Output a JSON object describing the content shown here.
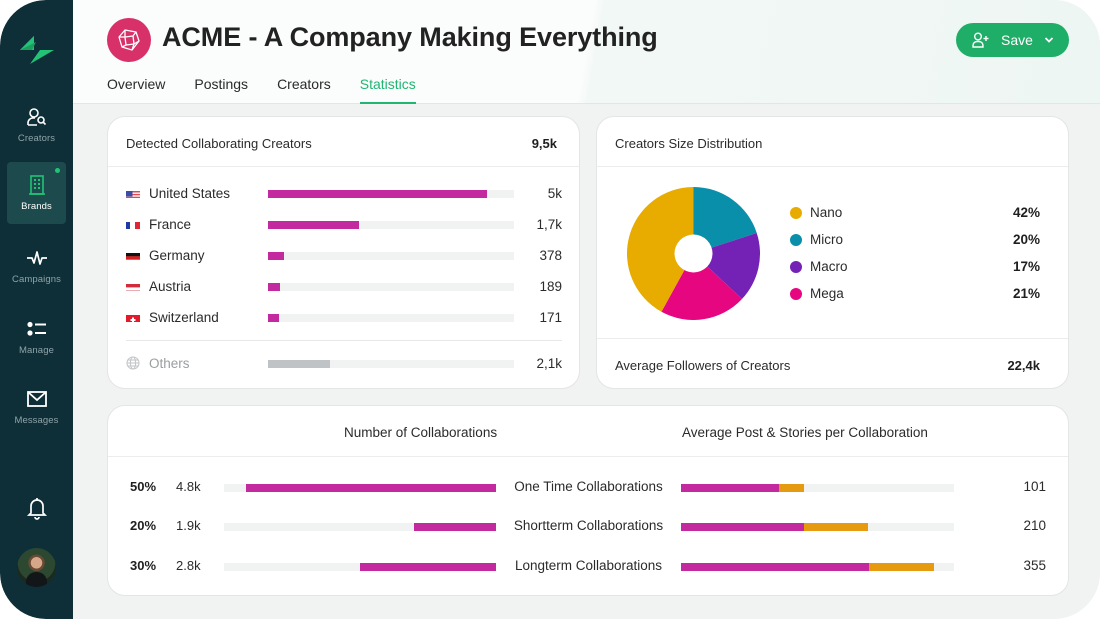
{
  "colors": {
    "sidebar_bg": "#0e2f38",
    "accent_green": "#1fae67",
    "bar_magenta": "#c42aa0",
    "bar_orange": "#e69a10",
    "brand_logo_bg": "#d8316a"
  },
  "sidebar": {
    "logo_icon": "diamond-logo-icon",
    "items": [
      {
        "label": "Creators",
        "icon": "person-search-icon",
        "active": false
      },
      {
        "label": "Brands",
        "icon": "building-icon",
        "active": true,
        "has_dot": true
      },
      {
        "label": "Campaigns",
        "icon": "pulse-icon",
        "active": false
      },
      {
        "label": "Manage",
        "icon": "list-icon",
        "active": false
      },
      {
        "label": "Messages",
        "icon": "envelope-icon",
        "active": false
      }
    ],
    "bell_icon": "bell-icon",
    "avatar": "user-avatar"
  },
  "header": {
    "brand_icon": "polyhedron-icon",
    "title": "ACME - A Company Making Everything",
    "tabs": [
      {
        "label": "Overview",
        "active": false
      },
      {
        "label": "Postings",
        "active": false
      },
      {
        "label": "Creators",
        "active": false
      },
      {
        "label": "Statistics",
        "active": true
      }
    ],
    "save_button": {
      "label": "Save",
      "icon": "user-plus-icon",
      "dropdown_icon": "chevron-down-icon"
    }
  },
  "countries_card": {
    "title": "Detected Collaborating Creators",
    "total": "9,5k",
    "rows": [
      {
        "country": "United States",
        "flag": "us",
        "value": "5k",
        "fill": 0.89
      },
      {
        "country": "France",
        "flag": "fr",
        "value": "1,7k",
        "fill": 0.37
      },
      {
        "country": "Germany",
        "flag": "de",
        "value": "378",
        "fill": 0.065
      },
      {
        "country": "Austria",
        "flag": "at",
        "value": "189",
        "fill": 0.048
      },
      {
        "country": "Switzerland",
        "flag": "ch",
        "value": "171",
        "fill": 0.045
      }
    ],
    "others": {
      "country": "Others",
      "icon": "globe-icon",
      "value": "2,1k",
      "fill": 0.25
    }
  },
  "distribution_card": {
    "title": "Creators Size Distribution",
    "chart_data": {
      "type": "pie",
      "donut": true,
      "title": "Creators Size Distribution",
      "slices_clockwise_from_top": [
        "Micro",
        "Macro",
        "Mega",
        "Nano"
      ],
      "legend": [
        {
          "label": "Nano",
          "value": 42,
          "display": "42%",
          "color": "#e8ab00"
        },
        {
          "label": "Micro",
          "value": 20,
          "display": "20%",
          "color": "#0a8fab"
        },
        {
          "label": "Macro",
          "value": 17,
          "display": "17%",
          "color": "#7322b5"
        },
        {
          "label": "Mega",
          "value": 21,
          "display": "21%",
          "color": "#e6067f"
        }
      ]
    },
    "footer_label": "Average Followers of Creators",
    "footer_value": "22,4k"
  },
  "collaborations_card": {
    "left_title": "Number of Collaborations",
    "right_title": "Average Post & Stories per Collaboration",
    "rows": [
      {
        "type": "One Time Collaborations",
        "percent": "50%",
        "count": "4.8k",
        "fill": 0.92,
        "avg_value": "101",
        "avg_posts_fill": 0.36,
        "avg_stories_fill": 0.09
      },
      {
        "type": "Shortterm Collaborations",
        "percent": "20%",
        "count": "1.9k",
        "fill": 0.3,
        "avg_value": "210",
        "avg_posts_fill": 0.45,
        "avg_stories_fill": 0.235
      },
      {
        "type": "Longterm Collaborations",
        "percent": "30%",
        "count": "2.8k",
        "fill": 0.5,
        "avg_value": "355",
        "avg_posts_fill": 0.69,
        "avg_stories_fill": 0.235
      }
    ]
  }
}
